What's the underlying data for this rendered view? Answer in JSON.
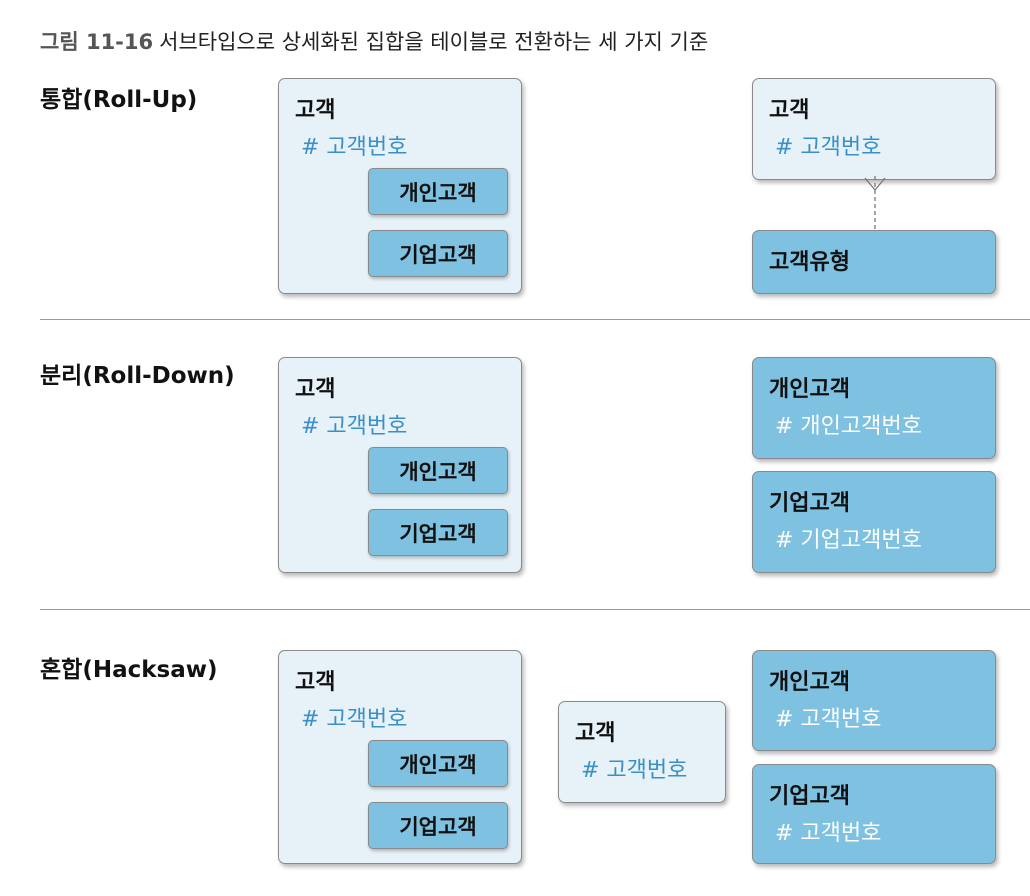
{
  "caption": {
    "number": "그림 11-16",
    "text": "서브타입으로 상세화된 집합을 테이블로 전환하는 세 가지 기준"
  },
  "sections": [
    {
      "label": "통합(Roll-Up)",
      "left_entity": {
        "name": "고객",
        "key": "# 고객번호",
        "subtypes": [
          "개인고객",
          "기업고객"
        ]
      },
      "result_entities": [
        {
          "name": "고객",
          "key": "# 고객번호"
        },
        {
          "name": "고객유형"
        }
      ]
    },
    {
      "label": "분리(Roll-Down)",
      "left_entity": {
        "name": "고객",
        "key": "# 고객번호",
        "subtypes": [
          "개인고객",
          "기업고객"
        ]
      },
      "result_entities": [
        {
          "name": "개인고객",
          "key": "# 개인고객번호"
        },
        {
          "name": "기업고객",
          "key": "# 기업고객번호"
        }
      ]
    },
    {
      "label": "혼합(Hacksaw)",
      "left_entity": {
        "name": "고객",
        "key": "# 고객번호",
        "subtypes": [
          "개인고객",
          "기업고객"
        ]
      },
      "result_entities": [
        {
          "name": "고객",
          "key": "# 고객번호"
        },
        {
          "name": "개인고객",
          "key": "# 고객번호"
        },
        {
          "name": "기업고객",
          "key": "# 고객번호"
        }
      ]
    }
  ],
  "colors": {
    "light_fill": "#e6f2f8",
    "dark_fill": "#7fc1e1",
    "key_text": "#3a8fc8"
  }
}
